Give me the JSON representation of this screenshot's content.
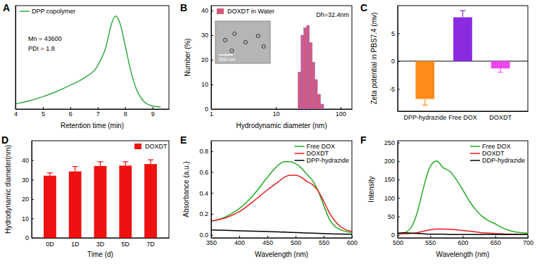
{
  "chart_data": [
    {
      "type": "line",
      "title": "A",
      "x": [
        4.0,
        4.5,
        5.0,
        5.5,
        6.0,
        6.5,
        7.0,
        7.3,
        7.5,
        7.65,
        7.8,
        8.0,
        8.2,
        8.4,
        8.6,
        8.8,
        9.0,
        9.3
      ],
      "series": [
        {
          "name": "DPP copolymer",
          "color": "#33aa44",
          "values": [
            0.05,
            0.08,
            0.12,
            0.17,
            0.23,
            0.3,
            0.42,
            0.6,
            0.82,
            0.9,
            0.84,
            0.62,
            0.38,
            0.2,
            0.1,
            0.05,
            0.03,
            0.02
          ]
        }
      ],
      "xlabel": "Retention time (min)",
      "xlim": [
        4,
        9.6
      ],
      "xticks": [
        4,
        5,
        6,
        7,
        8,
        9
      ],
      "ylim": [
        0,
        1
      ],
      "tick_labels": "x",
      "legend": "upper left",
      "annotations": [
        "Mn = 43600",
        "PDI = 1.8"
      ]
    },
    {
      "type": "histogram",
      "title": "B",
      "bins": [
        22,
        24.5,
        27,
        30,
        33,
        36.5,
        40,
        44,
        49,
        55
      ],
      "series": [
        {
          "name": "DOXDT in Water",
          "color": "#d9577f",
          "values": [
            15,
            30,
            33,
            34,
            27,
            19,
            12,
            6,
            2
          ]
        }
      ],
      "xlabel": "Hydrodynamic diameter (nm)",
      "ylabel": "Number (%)",
      "log": "x",
      "xlim": [
        1,
        150
      ],
      "xticks": [
        1,
        10,
        100
      ],
      "ylim": [
        0,
        42
      ],
      "yticks": [
        0,
        10,
        20,
        30,
        40
      ],
      "legend": "upper left",
      "annotations": [
        "Dh=32.4nm",
        "500 nm"
      ]
    },
    {
      "type": "bar",
      "title": "C",
      "categories": [
        "DPP-hydrazide",
        "Free DOX",
        "DOXDT"
      ],
      "values": [
        -6.8,
        7.9,
        -1.3
      ],
      "errors": [
        1.1,
        1.2,
        0.7
      ],
      "colors": [
        "#ff8c1a",
        "#8a2be2",
        "#ee44ee"
      ],
      "ylabel": "Zeta potential in PBS7.4 (mv)",
      "ylim": [
        -9,
        10
      ],
      "yticks": [
        -5,
        0,
        5
      ]
    },
    {
      "type": "bar",
      "title": "D",
      "categories": [
        "0D",
        "1D",
        "3D",
        "5D",
        "7D"
      ],
      "series": [
        {
          "name": "DOXDT",
          "color": "#ee1111",
          "values": [
            32,
            34.2,
            37,
            37.2,
            38
          ],
          "errors": [
            1.5,
            2.5,
            2.2,
            2.0,
            2.2
          ]
        }
      ],
      "xlabel": "Time (d)",
      "ylabel": "Hydrodynamic diameter(nm)",
      "ylim": [
        0,
        50
      ],
      "yticks": [
        0,
        10,
        20,
        30,
        40
      ],
      "legend": "upper right"
    },
    {
      "type": "line",
      "title": "E",
      "x": [
        350,
        375,
        400,
        425,
        450,
        470,
        480,
        490,
        500,
        510,
        520,
        530,
        540,
        550,
        560,
        575,
        600
      ],
      "series": [
        {
          "name": "Free DOX",
          "color": "#22aa22",
          "values": [
            0.13,
            0.17,
            0.25,
            0.38,
            0.55,
            0.67,
            0.7,
            0.7,
            0.68,
            0.64,
            0.58,
            0.52,
            0.42,
            0.28,
            0.15,
            0.06,
            0.02
          ]
        },
        {
          "name": "DOXDT",
          "color": "#e41a1c",
          "values": [
            0.13,
            0.16,
            0.22,
            0.32,
            0.43,
            0.51,
            0.55,
            0.57,
            0.57,
            0.55,
            0.51,
            0.48,
            0.42,
            0.32,
            0.21,
            0.1,
            0.03
          ]
        },
        {
          "name": "DPP-hydrazide",
          "color": "#000000",
          "values": [
            0.045,
            0.042,
            0.038,
            0.034,
            0.03,
            0.027,
            0.025,
            0.023,
            0.021,
            0.019,
            0.017,
            0.015,
            0.013,
            0.011,
            0.009,
            0.007,
            0.004
          ]
        }
      ],
      "xlabel": "Wavelength (nm)",
      "ylabel": "Absorbance (a.u.)",
      "xlim": [
        350,
        600
      ],
      "xticks": [
        350,
        400,
        450,
        500,
        550,
        600
      ],
      "ylim": [
        -0.03,
        0.9
      ],
      "yticks": [
        {
          "value": 0,
          "label": "0.0"
        },
        0.2,
        0.4,
        0.6,
        0.8
      ],
      "legend": "upper right"
    },
    {
      "type": "line",
      "title": "F",
      "x": [
        500,
        510,
        520,
        530,
        540,
        550,
        560,
        570,
        580,
        590,
        600,
        610,
        620,
        630,
        640,
        650,
        660,
        670,
        680,
        690,
        700
      ],
      "series": [
        {
          "name": "Free DOX",
          "color": "#22aa22",
          "values": [
            3,
            6,
            18,
            60,
            130,
            185,
            200,
            182,
            172,
            150,
            122,
            92,
            68,
            50,
            38,
            30,
            20,
            13,
            8,
            6,
            5
          ]
        },
        {
          "name": "DOXDT",
          "color": "#e41a1c",
          "values": [
            4,
            3,
            4,
            6,
            10,
            14,
            16,
            16,
            15,
            14,
            12,
            10,
            8,
            6,
            5,
            4,
            3,
            2,
            2,
            1,
            1
          ]
        },
        {
          "name": "DDP-hydrazide",
          "color": "#000000",
          "values": [
            5,
            6,
            5,
            4,
            3,
            2,
            2,
            2,
            1,
            1,
            1,
            1,
            1,
            1,
            1,
            1,
            1,
            1,
            1,
            1,
            1
          ]
        }
      ],
      "xlabel": "Wavelength (nm)",
      "ylabel": "Intensity",
      "xlim": [
        500,
        700
      ],
      "xticks": [
        500,
        550,
        600,
        650,
        700
      ],
      "ylim": [
        -8,
        255
      ],
      "yticks": [
        0,
        50,
        100,
        150,
        200,
        250
      ],
      "legend": "upper right"
    }
  ]
}
